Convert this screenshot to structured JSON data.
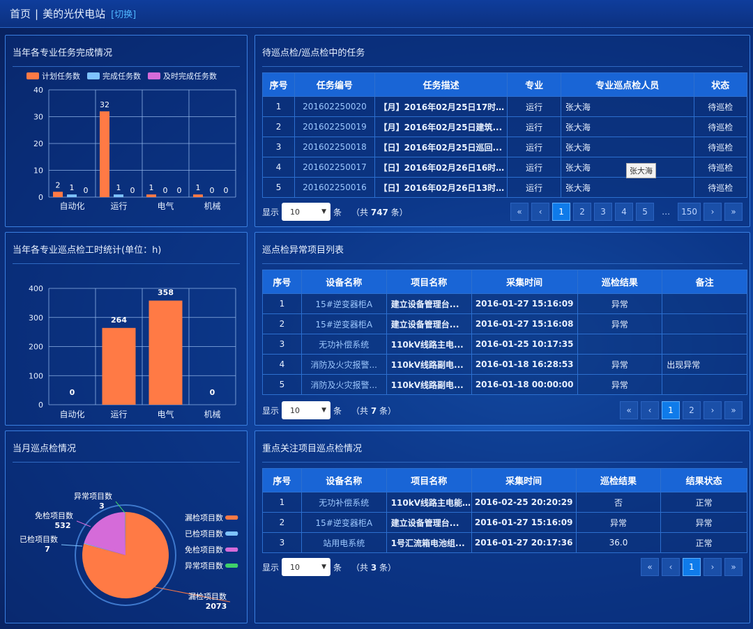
{
  "header": {
    "home": "首页",
    "sep": "|",
    "station": "美的光伏电站",
    "switch": "[切换]"
  },
  "panel_tasks": {
    "title": "当年各专业任务完成情况"
  },
  "panel_hours": {
    "title": "当年各专业巡点检工时统计(单位：h)"
  },
  "panel_month": {
    "title": "当月巡点检情况"
  },
  "chart_data": [
    {
      "type": "bar",
      "title": "当年各专业任务完成情况",
      "categories": [
        "自动化",
        "运行",
        "电气",
        "机械"
      ],
      "series": [
        {
          "name": "计划任务数",
          "values": [
            2,
            32,
            1,
            1
          ],
          "color": "#ff7a45"
        },
        {
          "name": "完成任务数",
          "values": [
            1,
            1,
            0,
            0
          ],
          "color": "#7ec3ff"
        },
        {
          "name": "及时完成任务数",
          "values": [
            0,
            0,
            0,
            0
          ],
          "color": "#d56bd9"
        }
      ],
      "ylim": [
        0,
        40
      ],
      "yticks": [
        0,
        10,
        20,
        30,
        40
      ],
      "grid": true,
      "legend": "top"
    },
    {
      "type": "bar",
      "title": "当年各专业巡点检工时统计(单位：h)",
      "categories": [
        "自动化",
        "运行",
        "电气",
        "机械"
      ],
      "values": [
        0,
        264,
        358,
        0
      ],
      "color": "#ff7a45",
      "ylim": [
        0,
        400
      ],
      "yticks": [
        0,
        100,
        200,
        300,
        400
      ],
      "grid": true
    },
    {
      "type": "pie",
      "title": "当月巡点检情况",
      "slices": [
        {
          "label": "漏检项目数",
          "value": 2073,
          "color": "#ff7a45"
        },
        {
          "label": "已检项目数",
          "value": 7,
          "color": "#7ec3ff"
        },
        {
          "label": "免检项目数",
          "value": 532,
          "color": "#d56bd9"
        },
        {
          "label": "异常项目数",
          "value": 3,
          "color": "#3fd16a"
        }
      ],
      "legend": "right"
    }
  ],
  "table1": {
    "title": "待巡点检/巡点检中的任务",
    "headers": [
      "序号",
      "任务编号",
      "任务描述",
      "专业",
      "专业巡点检人员",
      "状态"
    ],
    "rows": [
      [
        "1",
        "201602250020",
        "【月】2016年02月25日17时1...",
        "运行",
        "张大海",
        "待巡检"
      ],
      [
        "2",
        "201602250019",
        "【月】2016年02月25日建筑...",
        "运行",
        "张大海",
        "待巡检"
      ],
      [
        "3",
        "201602250018",
        "【日】2016年02月25日巡回...",
        "运行",
        "张大海",
        "待巡检"
      ],
      [
        "4",
        "201602250017",
        "【日】2016年02月26日16时1...",
        "运行",
        "张大海",
        "待巡检"
      ],
      [
        "5",
        "201602250016",
        "【日】2016年02月26日13时1...",
        "运行",
        "张大海",
        "待巡检"
      ]
    ],
    "tooltip": "张大海",
    "pager": {
      "show": "显示",
      "size": "10",
      "unit": "条",
      "total_pre": "（共",
      "total": "747",
      "total_post": "条）",
      "pages": [
        "«",
        "‹",
        "1",
        "2",
        "3",
        "4",
        "5",
        "…",
        "150",
        "›",
        "»"
      ],
      "active": "1"
    }
  },
  "table2": {
    "title": "巡点检异常项目列表",
    "headers": [
      "序号",
      "设备名称",
      "项目名称",
      "采集时间",
      "巡检结果",
      "备注"
    ],
    "rows": [
      [
        "1",
        "15#逆变器柜A",
        "建立设备管理台...",
        "2016-01-27 15:16:09",
        "异常",
        ""
      ],
      [
        "2",
        "15#逆变器柜A",
        "建立设备管理台...",
        "2016-01-27 15:16:08",
        "异常",
        ""
      ],
      [
        "3",
        "无功补偿系统",
        "110kV线路主电...",
        "2016-01-25 10:17:35",
        "",
        ""
      ],
      [
        "4",
        "消防及火灾报警...",
        "110kV线路副电...",
        "2016-01-18 16:28:53",
        "异常",
        "出现异常"
      ],
      [
        "5",
        "消防及火灾报警...",
        "110kV线路副电...",
        "2016-01-18 00:00:00",
        "异常",
        ""
      ]
    ],
    "pager": {
      "show": "显示",
      "size": "10",
      "unit": "条",
      "total_pre": "（共",
      "total": "7",
      "total_post": "条）",
      "pages": [
        "«",
        "‹",
        "1",
        "2",
        "›",
        "»"
      ],
      "active": "1"
    }
  },
  "table3": {
    "title": "重点关注项目巡点检情况",
    "headers": [
      "序号",
      "设备名称",
      "项目名称",
      "采集时间",
      "巡检结果",
      "结果状态"
    ],
    "rows": [
      [
        "1",
        "无功补偿系统",
        "110kV线路主电能...",
        "2016-02-25 20:20:29",
        "否",
        "正常"
      ],
      [
        "2",
        "15#逆变器柜A",
        "建立设备管理台...",
        "2016-01-27 15:16:09",
        "异常",
        "异常"
      ],
      [
        "3",
        "站用电系统",
        "1号汇流箱电池组...",
        "2016-01-27 20:17:36",
        "36.0",
        "正常"
      ]
    ],
    "pager": {
      "show": "显示",
      "size": "10",
      "unit": "条",
      "total_pre": "（共",
      "total": "3",
      "total_post": "条）",
      "pages": [
        "«",
        "‹",
        "1",
        "›",
        "»"
      ],
      "active": "1"
    }
  }
}
